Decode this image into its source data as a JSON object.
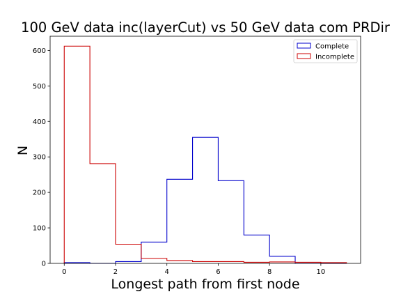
{
  "chart_data": {
    "type": "histogram",
    "title": "100 GeV data inc(layerCut) vs 50 GeV data com PRDir",
    "xlabel": "Longest path from first node",
    "ylabel": "N",
    "xlim": [
      -0.55,
      11.55
    ],
    "ylim": [
      0,
      640
    ],
    "xticks": [
      0,
      2,
      4,
      6,
      8,
      10
    ],
    "yticks": [
      0,
      100,
      200,
      300,
      400,
      500,
      600
    ],
    "bin_edges": [
      0,
      1,
      2,
      3,
      4,
      5,
      6,
      7,
      8,
      9,
      10,
      11
    ],
    "grid": false,
    "legend_position": "top-right",
    "series": [
      {
        "name": "Complete",
        "color": "#0000cc",
        "values": [
          2,
          0,
          5,
          60,
          237,
          355,
          233,
          80,
          20,
          0,
          0
        ]
      },
      {
        "name": "Incomplete",
        "color": "#cc0000",
        "values": [
          612,
          281,
          54,
          14,
          8,
          5,
          5,
          3,
          4,
          3,
          2
        ]
      }
    ]
  }
}
